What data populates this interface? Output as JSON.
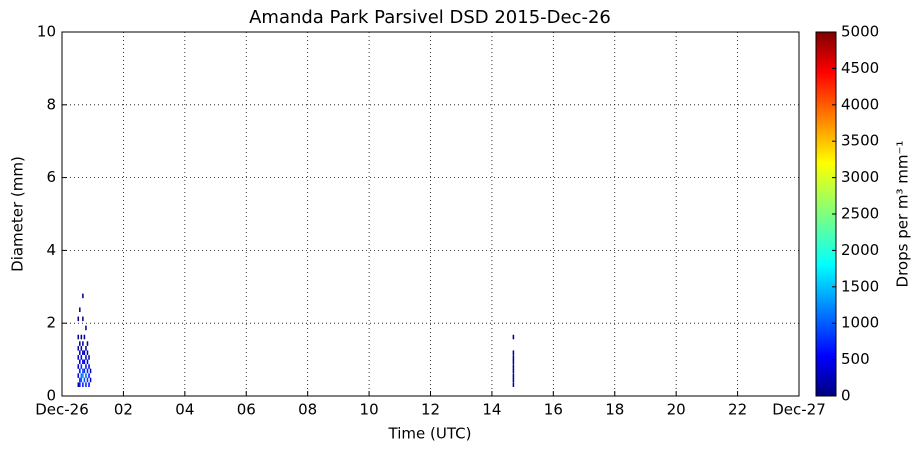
{
  "chart_data": {
    "type": "heatmap",
    "title": "Amanda Park Parsivel DSD 2015-Dec-26",
    "x_label": "Time (UTC)",
    "y_label": "Diameter (mm)",
    "colorbar_label": "Drops per m³ mm⁻¹",
    "colormap": "jet",
    "grid": true,
    "xlim": [
      0,
      24
    ],
    "xticks": [
      {
        "value": 0,
        "label": "Dec-26"
      },
      {
        "value": 2,
        "label": "02"
      },
      {
        "value": 4,
        "label": "04"
      },
      {
        "value": 6,
        "label": "06"
      },
      {
        "value": 8,
        "label": "08"
      },
      {
        "value": 10,
        "label": "10"
      },
      {
        "value": 12,
        "label": "12"
      },
      {
        "value": 14,
        "label": "14"
      },
      {
        "value": 16,
        "label": "16"
      },
      {
        "value": 18,
        "label": "18"
      },
      {
        "value": 20,
        "label": "20"
      },
      {
        "value": 22,
        "label": "22"
      },
      {
        "value": 24,
        "label": "Dec-27"
      }
    ],
    "ylim": [
      0,
      10
    ],
    "yticks": [
      0,
      2,
      4,
      6,
      8,
      10
    ],
    "clim": [
      0,
      5000
    ],
    "cticks": [
      0,
      500,
      1000,
      1500,
      2000,
      2500,
      3000,
      3500,
      4000,
      4500,
      5000
    ],
    "x": [
      0.53,
      0.53,
      0.53,
      0.53,
      0.53,
      0.53,
      0.53,
      0.58,
      0.58,
      0.58,
      0.58,
      0.58,
      0.58,
      0.58,
      0.63,
      0.63,
      0.63,
      0.63,
      0.63,
      0.63,
      0.68,
      0.68,
      0.68,
      0.68,
      0.68,
      0.68,
      0.68,
      0.68,
      0.73,
      0.73,
      0.73,
      0.73,
      0.73,
      0.78,
      0.78,
      0.78,
      0.78,
      0.78,
      0.78,
      0.83,
      0.83,
      0.83,
      0.83,
      0.83,
      0.88,
      0.88,
      0.88,
      0.88,
      0.93,
      0.93,
      14.7,
      14.7,
      14.7,
      14.7,
      14.7,
      14.7,
      14.7,
      14.7,
      14.7
    ],
    "y": [
      0.31,
      0.56,
      0.81,
      1.06,
      1.31,
      1.62,
      2.12,
      0.31,
      0.44,
      0.69,
      0.94,
      1.19,
      1.44,
      2.37,
      0.44,
      0.56,
      0.81,
      1.06,
      1.31,
      1.62,
      0.31,
      0.56,
      0.69,
      0.94,
      1.19,
      1.44,
      2.12,
      2.75,
      0.44,
      0.69,
      0.94,
      1.19,
      1.62,
      0.31,
      0.56,
      0.81,
      1.06,
      1.31,
      1.87,
      0.44,
      0.69,
      0.94,
      1.19,
      1.44,
      0.31,
      0.56,
      0.81,
      1.06,
      0.44,
      0.69,
      0.31,
      0.44,
      0.56,
      0.69,
      0.81,
      0.94,
      1.06,
      1.19,
      1.62
    ],
    "values": [
      300,
      500,
      400,
      300,
      200,
      100,
      100,
      600,
      900,
      700,
      500,
      300,
      150,
      80,
      1100,
      1200,
      800,
      500,
      250,
      100,
      700,
      1300,
      1000,
      600,
      300,
      120,
      80,
      50,
      1000,
      900,
      500,
      250,
      100,
      800,
      1100,
      700,
      400,
      200,
      80,
      900,
      800,
      400,
      200,
      100,
      600,
      700,
      500,
      250,
      400,
      300,
      150,
      150,
      150,
      150,
      150,
      150,
      150,
      150,
      60
    ]
  }
}
